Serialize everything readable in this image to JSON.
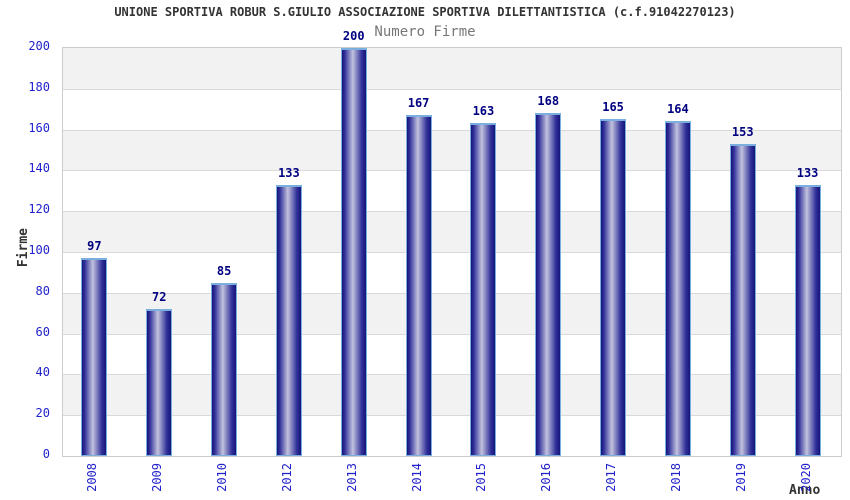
{
  "title": "UNIONE SPORTIVA ROBUR S.GIULIO ASSOCIAZIONE SPORTIVA DILETTANTISTICA (c.f.91042270123)",
  "subtitle": "Numero Firme",
  "chart_data": {
    "type": "bar",
    "title": "UNIONE SPORTIVA ROBUR S.GIULIO ASSOCIAZIONE SPORTIVA DILETTANTISTICA (c.f.91042270123)",
    "subtitle": "Numero Firme",
    "xlabel": "Anno",
    "ylabel": "Firme",
    "categories": [
      "2008",
      "2009",
      "2010",
      "2012",
      "2013",
      "2014",
      "2015",
      "2016",
      "2017",
      "2018",
      "2019",
      "2020"
    ],
    "values": [
      97,
      72,
      85,
      133,
      200,
      167,
      163,
      168,
      165,
      164,
      153,
      133
    ],
    "ylim": [
      0,
      200
    ],
    "ytick_step": 20,
    "yticks": [
      0,
      20,
      40,
      60,
      80,
      100,
      120,
      140,
      160,
      180,
      200
    ],
    "grid": "horizontal-bands",
    "legend_position": "none",
    "colors": {
      "bar_edge_dark": "#14147a",
      "bar_mid": "#32329b",
      "bar_light_center": "#c2c2de",
      "bar_outline": "#79aede",
      "band": "#f2f2f2",
      "gridline": "#d9d9d9",
      "plot_border": "#cccccc",
      "tick_label": "#2222cc",
      "value_label": "#000080",
      "title": "#333333",
      "subtitle": "#777777"
    }
  }
}
